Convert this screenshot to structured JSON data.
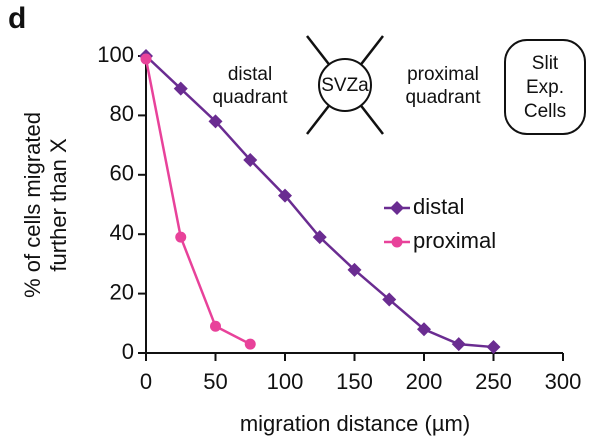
{
  "chart_data": {
    "type": "line",
    "panel_label": "d",
    "xlabel": "migration distance (µm)",
    "ylabel": [
      "% of cells migrated",
      "further than X"
    ],
    "annotations": {
      "left": [
        "distal",
        "quadrant"
      ],
      "center": "SVZa",
      "right": [
        "proximal",
        "quadrant"
      ],
      "box": [
        "Slit",
        "Exp.",
        "Cells"
      ]
    },
    "x": [
      0,
      25,
      50,
      75,
      100,
      125,
      150,
      175,
      200,
      225,
      250
    ],
    "series": [
      {
        "name": "distal",
        "color": "#6a2c91",
        "marker": "diamond",
        "values": [
          100,
          89,
          78,
          65,
          53,
          39,
          28,
          18,
          8,
          3,
          2
        ]
      },
      {
        "name": "proximal",
        "color": "#e8429a",
        "marker": "circle",
        "values": [
          99,
          39,
          9,
          3,
          null,
          null,
          null,
          null,
          null,
          null,
          null
        ]
      }
    ],
    "xlim": [
      0,
      300
    ],
    "xticks": [
      0,
      50,
      100,
      150,
      200,
      250,
      300
    ],
    "ylim": [
      0,
      100
    ],
    "yticks": [
      0,
      20,
      40,
      60,
      80,
      100
    ],
    "grid": false
  }
}
